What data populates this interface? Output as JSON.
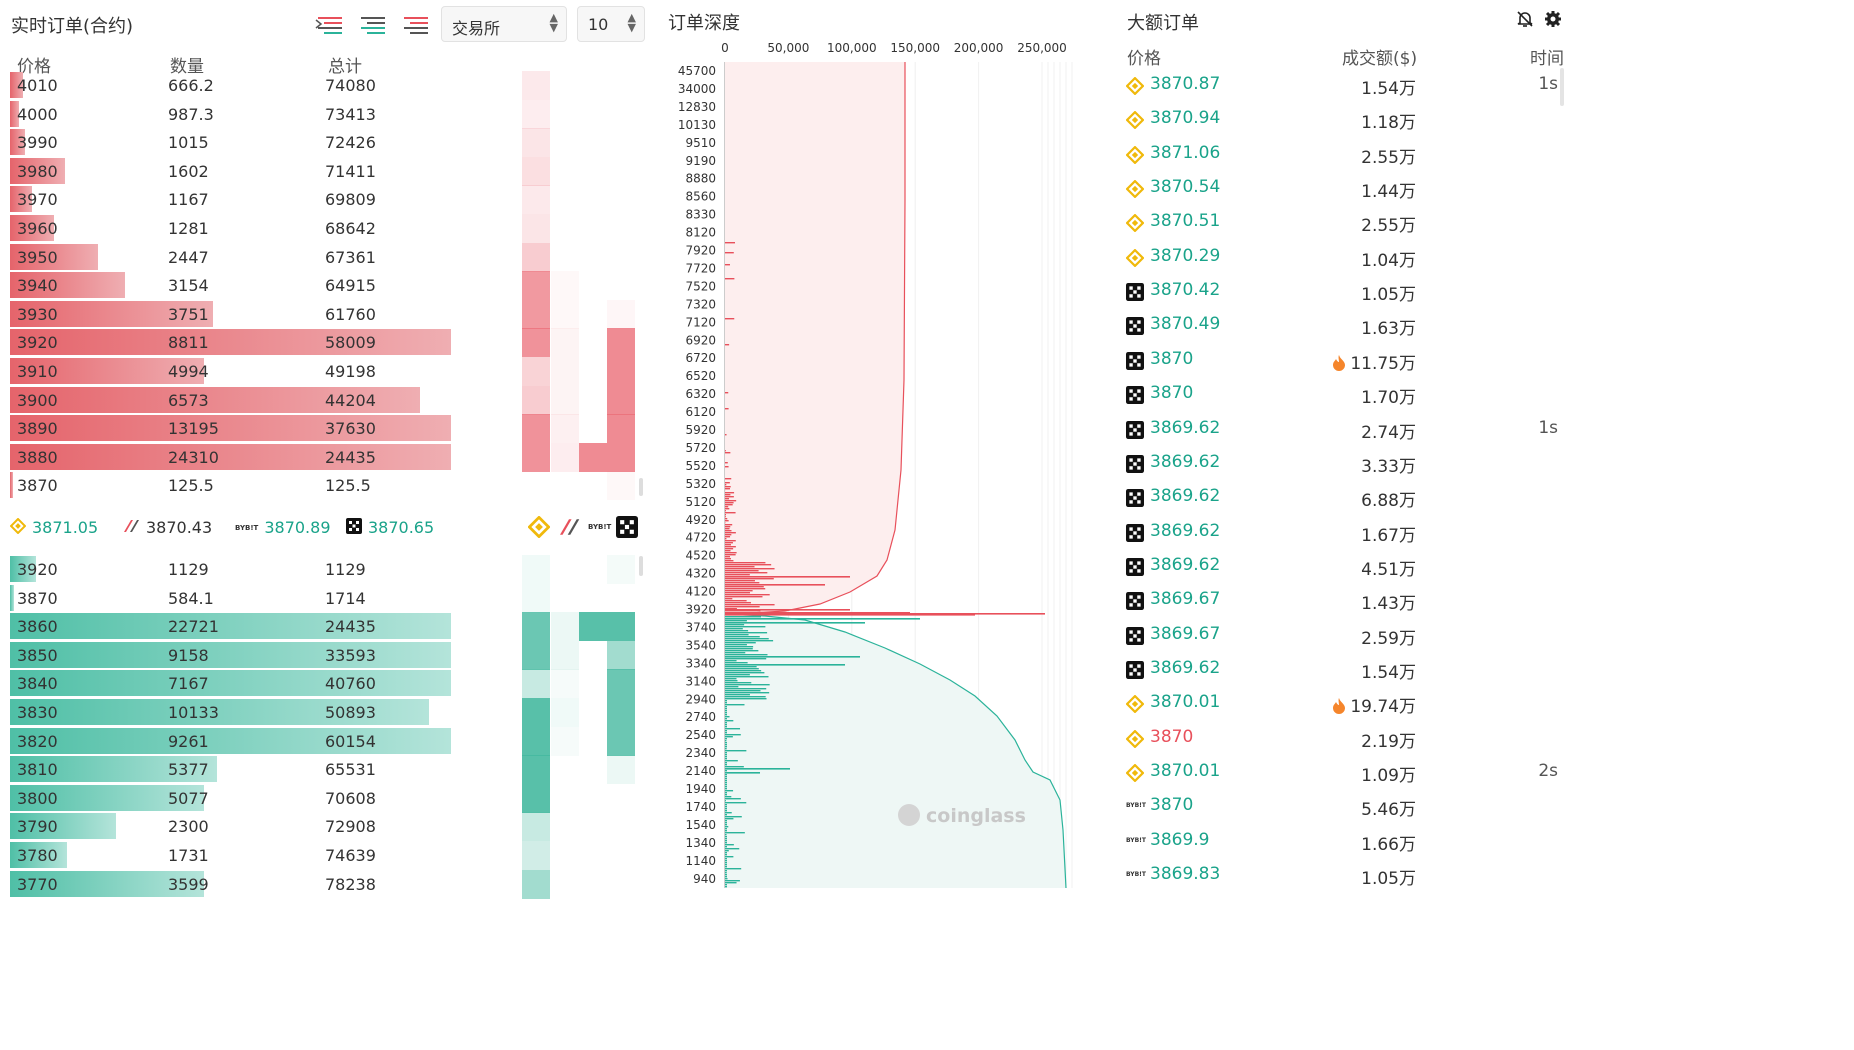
{
  "realtime": {
    "title": "实时订单(合约)",
    "exchange_select": "交易所",
    "depth_select": "10",
    "headers": {
      "price": "价格",
      "qty": "数量",
      "total": "总计"
    },
    "asks": [
      {
        "price": "4010",
        "qty": "666.2",
        "total": "74080",
        "bar": 0.03
      },
      {
        "price": "4000",
        "qty": "987.3",
        "total": "73413",
        "bar": 0.02
      },
      {
        "price": "3990",
        "qty": "1015",
        "total": "72426",
        "bar": 0.035
      },
      {
        "price": "3980",
        "qty": "1602",
        "total": "71411",
        "bar": 0.125
      },
      {
        "price": "3970",
        "qty": "1167",
        "total": "69809",
        "bar": 0.05
      },
      {
        "price": "3960",
        "qty": "1281",
        "total": "68642",
        "bar": 0.1
      },
      {
        "price": "3950",
        "qty": "2447",
        "total": "67361",
        "bar": 0.2
      },
      {
        "price": "3940",
        "qty": "3154",
        "total": "64915",
        "bar": 0.26
      },
      {
        "price": "3930",
        "qty": "3751",
        "total": "61760",
        "bar": 0.46
      },
      {
        "price": "3920",
        "qty": "8811",
        "total": "58009",
        "bar": 1.0
      },
      {
        "price": "3910",
        "qty": "4994",
        "total": "49198",
        "bar": 0.44
      },
      {
        "price": "3900",
        "qty": "6573",
        "total": "44204",
        "bar": 0.93
      },
      {
        "price": "3890",
        "qty": "13195",
        "total": "37630",
        "bar": 1.0
      },
      {
        "price": "3880",
        "qty": "24310",
        "total": "24435",
        "bar": 1.0
      },
      {
        "price": "3870",
        "qty": "125.5",
        "total": "125.5",
        "bar": 0.004
      }
    ],
    "bids": [
      {
        "price": "3920",
        "qty": "1129",
        "total": "1129",
        "bar": 0.06
      },
      {
        "price": "3870",
        "qty": "584.1",
        "total": "1714",
        "bar": 0.01
      },
      {
        "price": "3860",
        "qty": "22721",
        "total": "24435",
        "bar": 1.0
      },
      {
        "price": "3850",
        "qty": "9158",
        "total": "33593",
        "bar": 1.0
      },
      {
        "price": "3840",
        "qty": "7167",
        "total": "40760",
        "bar": 1.0
      },
      {
        "price": "3830",
        "qty": "10133",
        "total": "50893",
        "bar": 0.95
      },
      {
        "price": "3820",
        "qty": "9261",
        "total": "60154",
        "bar": 1.0
      },
      {
        "price": "3810",
        "qty": "5377",
        "total": "65531",
        "bar": 0.47
      },
      {
        "price": "3800",
        "qty": "5077",
        "total": "70608",
        "bar": 0.44
      },
      {
        "price": "3790",
        "qty": "2300",
        "total": "72908",
        "bar": 0.24
      },
      {
        "price": "3780",
        "qty": "1731",
        "total": "74639",
        "bar": 0.13
      },
      {
        "price": "3770",
        "qty": "3599",
        "total": "78238",
        "bar": 0.44
      }
    ],
    "exchanges": [
      {
        "name": "binance-icon",
        "price": "3871.05",
        "color": "#1aa38a"
      },
      {
        "name": "huobi-icon",
        "price": "3870.43",
        "color": "#333333"
      },
      {
        "name": "bybit-icon",
        "price": "3870.89",
        "color": "#1aa38a"
      },
      {
        "name": "okx-icon",
        "price": "3870.65",
        "color": "#1aa38a"
      }
    ],
    "bybit_text": "BYB!T"
  },
  "depth": {
    "title": "订单深度",
    "x_ticks": [
      "0",
      "50,000",
      "100,000",
      "150,000",
      "200,000",
      "250,000"
    ],
    "y_ticks": [
      "45700",
      "34000",
      "12830",
      "10130",
      "9510",
      "9190",
      "8880",
      "8560",
      "8330",
      "8120",
      "7920",
      "7720",
      "7520",
      "7320",
      "7120",
      "6920",
      "6720",
      "6520",
      "6320",
      "6120",
      "5920",
      "5720",
      "5520",
      "5320",
      "5120",
      "4920",
      "4720",
      "4520",
      "4320",
      "4120",
      "3920",
      "3740",
      "3540",
      "3340",
      "3140",
      "2940",
      "2740",
      "2540",
      "2340",
      "2140",
      "1940",
      "1740",
      "1540",
      "1340",
      "1140",
      "940"
    ],
    "watermark": "coinglass"
  },
  "large_orders": {
    "title": "大额订单",
    "headers": {
      "price": "价格",
      "amount": "成交额($)",
      "time": "时间"
    },
    "rows": [
      {
        "ex": "binance",
        "price": "3870.87",
        "amount": "1.54万",
        "time": "1s",
        "color": "#1aa38a",
        "fire": false
      },
      {
        "ex": "binance",
        "price": "3870.94",
        "amount": "1.18万",
        "time": "",
        "color": "#1aa38a",
        "fire": false
      },
      {
        "ex": "binance",
        "price": "3871.06",
        "amount": "2.55万",
        "time": "",
        "color": "#1aa38a",
        "fire": false
      },
      {
        "ex": "binance",
        "price": "3870.54",
        "amount": "1.44万",
        "time": "",
        "color": "#1aa38a",
        "fire": false
      },
      {
        "ex": "binance",
        "price": "3870.51",
        "amount": "2.55万",
        "time": "",
        "color": "#1aa38a",
        "fire": false
      },
      {
        "ex": "binance",
        "price": "3870.29",
        "amount": "1.04万",
        "time": "",
        "color": "#1aa38a",
        "fire": false
      },
      {
        "ex": "okx",
        "price": "3870.42",
        "amount": "1.05万",
        "time": "",
        "color": "#1aa38a",
        "fire": false
      },
      {
        "ex": "okx",
        "price": "3870.49",
        "amount": "1.63万",
        "time": "",
        "color": "#1aa38a",
        "fire": false
      },
      {
        "ex": "okx",
        "price": "3870",
        "amount": "11.75万",
        "time": "",
        "color": "#1aa38a",
        "fire": true
      },
      {
        "ex": "okx",
        "price": "3870",
        "amount": "1.70万",
        "time": "",
        "color": "#1aa38a",
        "fire": false
      },
      {
        "ex": "okx",
        "price": "3869.62",
        "amount": "2.74万",
        "time": "1s",
        "color": "#1aa38a",
        "fire": false
      },
      {
        "ex": "okx",
        "price": "3869.62",
        "amount": "3.33万",
        "time": "",
        "color": "#1aa38a",
        "fire": false
      },
      {
        "ex": "okx",
        "price": "3869.62",
        "amount": "6.88万",
        "time": "",
        "color": "#1aa38a",
        "fire": false
      },
      {
        "ex": "okx",
        "price": "3869.62",
        "amount": "1.67万",
        "time": "",
        "color": "#1aa38a",
        "fire": false
      },
      {
        "ex": "okx",
        "price": "3869.62",
        "amount": "4.51万",
        "time": "",
        "color": "#1aa38a",
        "fire": false
      },
      {
        "ex": "okx",
        "price": "3869.67",
        "amount": "1.43万",
        "time": "",
        "color": "#1aa38a",
        "fire": false
      },
      {
        "ex": "okx",
        "price": "3869.67",
        "amount": "2.59万",
        "time": "",
        "color": "#1aa38a",
        "fire": false
      },
      {
        "ex": "okx",
        "price": "3869.62",
        "amount": "1.54万",
        "time": "",
        "color": "#1aa38a",
        "fire": false
      },
      {
        "ex": "binance",
        "price": "3870.01",
        "amount": "19.74万",
        "time": "",
        "color": "#1aa38a",
        "fire": true
      },
      {
        "ex": "binance",
        "price": "3870",
        "amount": "2.19万",
        "time": "",
        "color": "#e8505b",
        "fire": false
      },
      {
        "ex": "binance",
        "price": "3870.01",
        "amount": "1.09万",
        "time": "2s",
        "color": "#1aa38a",
        "fire": false
      },
      {
        "ex": "bybit",
        "price": "3870",
        "amount": "5.46万",
        "time": "",
        "color": "#1aa38a",
        "fire": false
      },
      {
        "ex": "bybit",
        "price": "3869.9",
        "amount": "1.66万",
        "time": "",
        "color": "#1aa38a",
        "fire": false
      },
      {
        "ex": "bybit",
        "price": "3869.83",
        "amount": "1.05万",
        "time": "",
        "color": "#1aa38a",
        "fire": false
      }
    ]
  },
  "colors": {
    "ask": "#e8505b",
    "bid": "#2bb39a",
    "binance": "#f0b90b"
  }
}
